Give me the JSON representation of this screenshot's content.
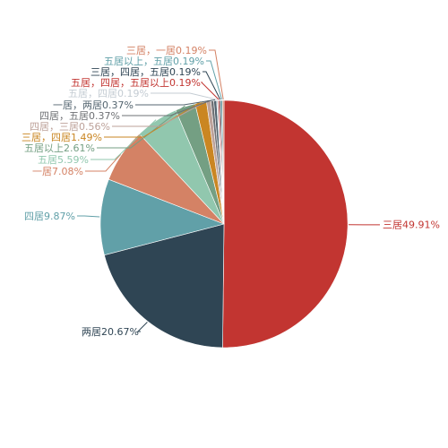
{
  "chart_data": {
    "type": "pie",
    "title": "",
    "series": [
      {
        "name": "",
        "slices": [
          {
            "label": "三居",
            "value": 49.91,
            "display": "三居49.91%",
            "color": "#c23531"
          },
          {
            "label": "两居",
            "value": 20.67,
            "display": "两居20.67%",
            "color": "#2f4554"
          },
          {
            "label": "四居",
            "value": 9.87,
            "display": "四居9.87%",
            "color": "#61a0a8"
          },
          {
            "label": "一居",
            "value": 7.08,
            "display": "一居7.08%",
            "color": "#d48265"
          },
          {
            "label": "五居",
            "value": 5.59,
            "display": "五居5.59%",
            "color": "#91c7ae"
          },
          {
            "label": "五居以上",
            "value": 2.61,
            "display": "五居以上2.61%",
            "color": "#749f83"
          },
          {
            "label": "三居，四居",
            "value": 1.49,
            "display": "三居，四居1.49%",
            "color": "#ca8622"
          },
          {
            "label": "四居，三居",
            "value": 0.56,
            "display": "四居，三居0.56%",
            "color": "#bda29a"
          },
          {
            "label": "四居，五居",
            "value": 0.37,
            "display": "四居，五居0.37%",
            "color": "#6e7074"
          },
          {
            "label": "一居，两居",
            "value": 0.37,
            "display": "一居，两居0.37%",
            "color": "#546570"
          },
          {
            "label": "五居，四居",
            "value": 0.19,
            "display": "五居，四居0.19%",
            "color": "#c4ccd3"
          },
          {
            "label": "五居，四居，五居以上",
            "value": 0.19,
            "display": "五居，四居，五居以上0.19%",
            "color": "#c23531"
          },
          {
            "label": "三居，四居，五居",
            "value": 0.19,
            "display": "三居，四居，五居0.19%",
            "color": "#2f4554"
          },
          {
            "label": "五居以上，五居",
            "value": 0.19,
            "display": "五居以上，五居0.19%",
            "color": "#61a0a8"
          },
          {
            "label": "三居，一居",
            "value": 0.19,
            "display": "三居，一居0.19%",
            "color": "#d48265"
          }
        ]
      }
    ],
    "legend": "none",
    "start_angle_deg": 90,
    "direction": "clockwise"
  }
}
